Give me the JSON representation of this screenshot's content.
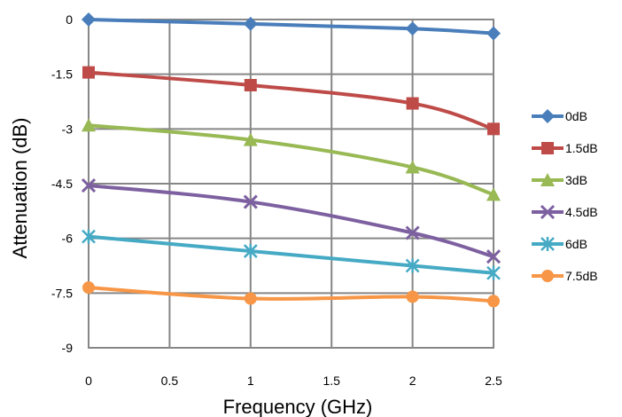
{
  "chart_data": {
    "type": "line",
    "title": "",
    "xlabel": "Frequency (GHz)",
    "ylabel": "Attenuation (dB)",
    "x": [
      0,
      1,
      2,
      2.5
    ],
    "x_ticks": [
      "0",
      "0.5",
      "1",
      "1.5",
      "2",
      "2.5"
    ],
    "x_tick_values": [
      0,
      0.5,
      1,
      1.5,
      2,
      2.5
    ],
    "y_ticks": [
      "0",
      "-1.5",
      "-3",
      "-4.5",
      "-6",
      "-7.5",
      "-9"
    ],
    "y_tick_values": [
      0,
      -1.5,
      -3,
      -4.5,
      -6,
      -7.5,
      -9
    ],
    "xlim": [
      0,
      2.5
    ],
    "ylim": [
      -9,
      0
    ],
    "grid": true,
    "legend_position": "right",
    "series": [
      {
        "name": "0dB",
        "values": [
          0,
          -0.12,
          -0.25,
          -0.38
        ],
        "color": "#4a7ebb",
        "marker": "diamond"
      },
      {
        "name": "1.5dB",
        "values": [
          -1.45,
          -1.8,
          -2.3,
          -3.0
        ],
        "color": "#be4b48",
        "marker": "square"
      },
      {
        "name": "3dB",
        "values": [
          -2.9,
          -3.3,
          -4.05,
          -4.8
        ],
        "color": "#98b954",
        "marker": "triangle"
      },
      {
        "name": "4.5dB",
        "values": [
          -4.55,
          -5.0,
          -5.85,
          -6.5
        ],
        "color": "#7d60a0",
        "marker": "x"
      },
      {
        "name": "6dB",
        "values": [
          -5.95,
          -6.35,
          -6.75,
          -6.95
        ],
        "color": "#46aac5",
        "marker": "star"
      },
      {
        "name": "7.5dB",
        "values": [
          -7.35,
          -7.65,
          -7.6,
          -7.72
        ],
        "color": "#f79646",
        "marker": "circle"
      }
    ]
  }
}
